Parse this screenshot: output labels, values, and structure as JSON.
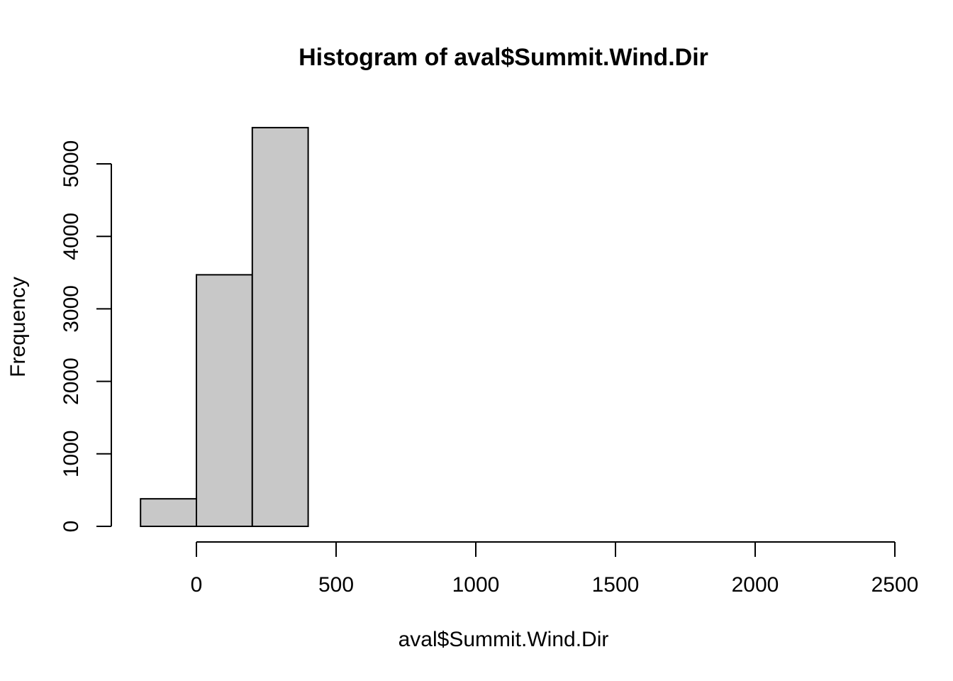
{
  "chart_data": {
    "type": "bar",
    "title": "Histogram of aval$Summit.Wind.Dir",
    "xlabel": "aval$Summit.Wind.Dir",
    "ylabel": "Frequency",
    "bins": [
      {
        "start": -200,
        "end": 0,
        "count": 380
      },
      {
        "start": 0,
        "end": 200,
        "count": 3470
      },
      {
        "start": 200,
        "end": 400,
        "count": 5500
      },
      {
        "start": 400,
        "end": 600,
        "count": 0
      },
      {
        "start": 600,
        "end": 800,
        "count": 0
      },
      {
        "start": 800,
        "end": 1000,
        "count": 0
      },
      {
        "start": 1000,
        "end": 1200,
        "count": 0
      },
      {
        "start": 1200,
        "end": 1400,
        "count": 0
      },
      {
        "start": 1400,
        "end": 1600,
        "count": 0
      },
      {
        "start": 1600,
        "end": 1800,
        "count": 0
      },
      {
        "start": 1800,
        "end": 2000,
        "count": 0
      },
      {
        "start": 2000,
        "end": 2200,
        "count": 0
      },
      {
        "start": 2200,
        "end": 2400,
        "count": 0
      }
    ],
    "x_ticks": [
      0,
      500,
      1000,
      1500,
      2000,
      2500
    ],
    "x_tick_labels": [
      "0",
      "500",
      "1000",
      "1500",
      "2000",
      "2500"
    ],
    "y_ticks": [
      0,
      1000,
      2000,
      3000,
      4000,
      5000
    ],
    "y_tick_labels": [
      "0",
      "1000",
      "2000",
      "3000",
      "4000",
      "5000"
    ],
    "xlim": [
      -200,
      2400
    ],
    "ylim": [
      0,
      5500
    ],
    "bar_color": "#c8c8c8",
    "grid": false,
    "legend": false
  }
}
